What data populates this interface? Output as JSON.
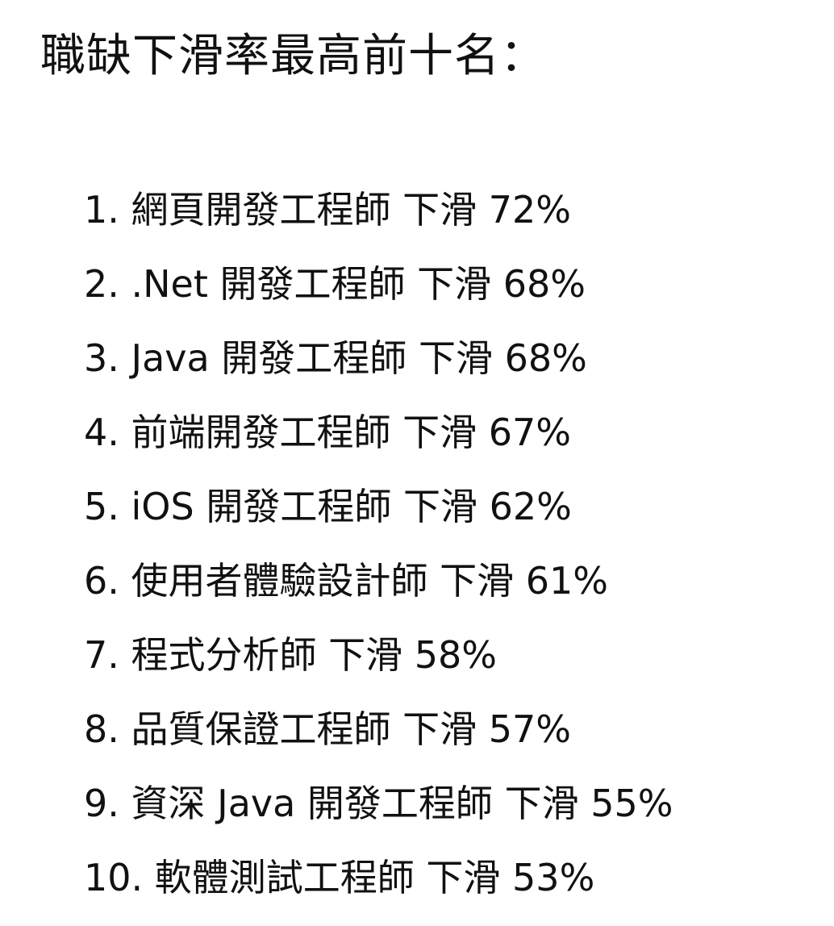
{
  "title": "職缺下滑率最高前十名：",
  "items": [
    {
      "rank": "1.",
      "job": "網頁開發工程師",
      "label": "下滑",
      "rate": "72%"
    },
    {
      "rank": "2.",
      "job": ".Net 開發工程師",
      "label": "下滑",
      "rate": "68%"
    },
    {
      "rank": "3.",
      "job": "Java 開發工程師",
      "label": "下滑",
      "rate": "68%"
    },
    {
      "rank": "4.",
      "job": "前端開發工程師",
      "label": "下滑",
      "rate": "67%"
    },
    {
      "rank": "5.",
      "job": "iOS 開發工程師",
      "label": "下滑",
      "rate": "62%"
    },
    {
      "rank": "6.",
      "job": "使用者體驗設計師",
      "label": "下滑",
      "rate": "61%"
    },
    {
      "rank": "7.",
      "job": "程式分析師",
      "label": "下滑",
      "rate": "58%"
    },
    {
      "rank": "8.",
      "job": "品質保證工程師",
      "label": "下滑",
      "rate": "57%"
    },
    {
      "rank": "9.",
      "job": "資深 Java 開發工程師",
      "label": "下滑",
      "rate": "55%"
    },
    {
      "rank": "10.",
      "job": "軟體測試工程師",
      "label": "下滑",
      "rate": "53%"
    }
  ]
}
